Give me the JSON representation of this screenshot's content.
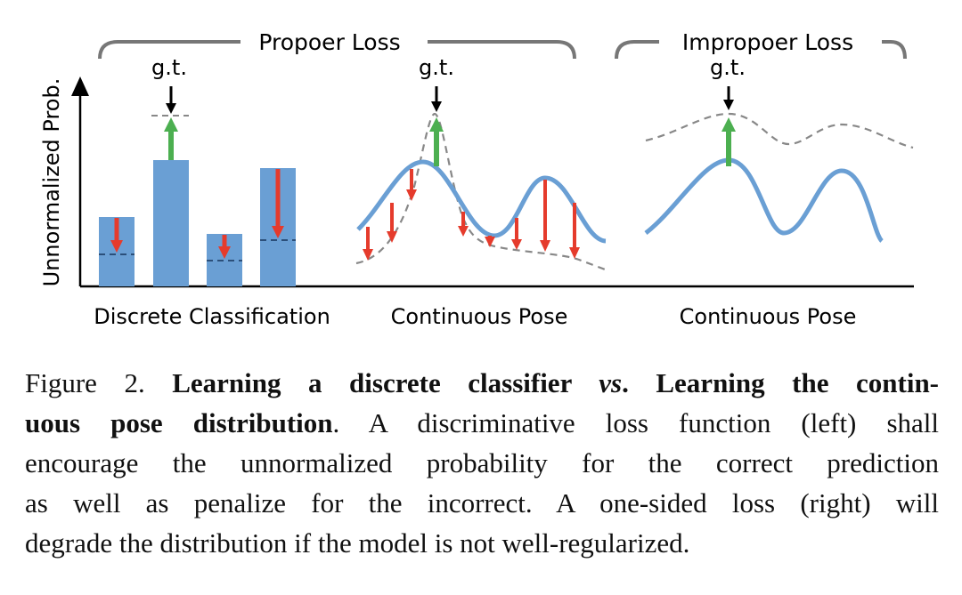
{
  "figure": {
    "proper_loss_label": "Propoer Loss",
    "improper_loss_label": "Impropoer Loss",
    "gt_label": "g.t.",
    "y_axis_label": "Unnormalized Prob.",
    "panel_labels": [
      "Discrete Classification",
      "Continuous Pose",
      "Continuous Pose"
    ],
    "colors": {
      "bar": "#6a9fd4",
      "curve": "#6a9fd4",
      "up_arrow": "#4caf50",
      "down_arrow": "#e53b2c",
      "dashed": "#888888"
    }
  },
  "caption": {
    "lines": [
      [
        {
          "t": "Figure 2. ",
          "b": false
        },
        {
          "t": "Learning a discrete classifier ",
          "b": true
        },
        {
          "t": "vs",
          "b": true,
          "i": true
        },
        {
          "t": ". Learning the contin-",
          "b": true
        }
      ],
      [
        {
          "t": "uous pose distribution",
          "b": true
        },
        {
          "t": ". A discriminative loss function (left) shall",
          "b": false
        }
      ],
      [
        {
          "t": "encourage the unnormalized probability for the correct prediction",
          "b": false
        }
      ],
      [
        {
          "t": "as well as penalize for the incorrect.  A one-sided loss (right) will",
          "b": false
        }
      ],
      [
        {
          "t": "degrade the distribution if the model is not well-regularized.",
          "b": false
        }
      ]
    ]
  }
}
